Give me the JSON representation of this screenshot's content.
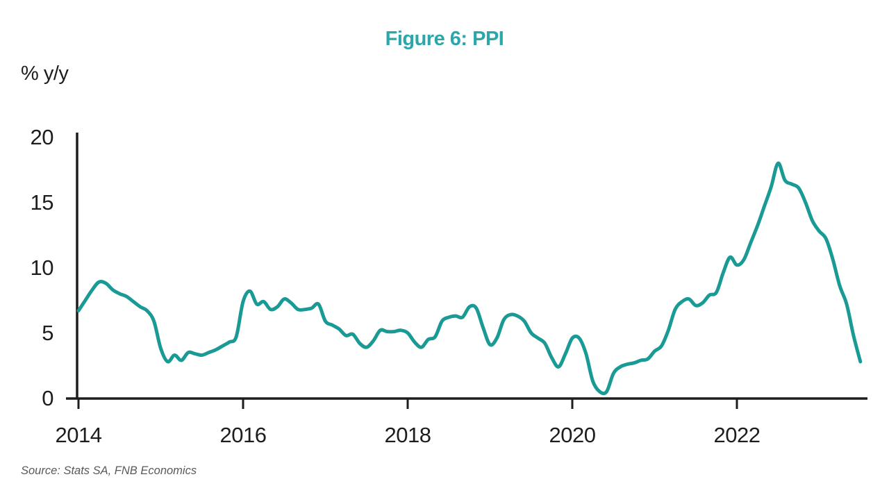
{
  "figure": {
    "title": "Figure 6: PPI",
    "y_axis_unit": "% y/y",
    "source_note": "Source: Stats SA, FNB Economics"
  },
  "colors": {
    "title": "#2BA7AA",
    "line": "#1A9A94",
    "axis": "#1D1D1B",
    "tick_label": "#1D1D1B",
    "source_text": "#595959",
    "background": "#FFFFFF"
  },
  "chart_data": {
    "type": "line",
    "title": "Figure 6: PPI",
    "ylabel": "% y/y",
    "xlabel": "",
    "grid": false,
    "legend_position": "none",
    "x_ticks": [
      2014,
      2016,
      2018,
      2020,
      2022
    ],
    "y_ticks": [
      0,
      5,
      10,
      15,
      20
    ],
    "ylim": [
      0,
      20
    ],
    "xlim": [
      2014.0,
      2023.75
    ],
    "source": "Source: Stats SA, FNB Economics",
    "series": [
      {
        "name": "PPI",
        "unit": "% y/y",
        "frequency": "monthly",
        "start": "2014-01",
        "end": "2023-07",
        "values": [
          6.7,
          7.5,
          8.3,
          8.9,
          8.8,
          8.3,
          8.0,
          7.8,
          7.4,
          7.0,
          6.7,
          5.9,
          3.8,
          2.8,
          3.3,
          2.9,
          3.5,
          3.4,
          3.3,
          3.5,
          3.7,
          4.0,
          4.3,
          4.7,
          7.4,
          8.2,
          7.2,
          7.4,
          6.8,
          7.0,
          7.6,
          7.3,
          6.8,
          6.8,
          6.9,
          7.2,
          5.9,
          5.6,
          5.3,
          4.8,
          4.9,
          4.2,
          3.9,
          4.4,
          5.2,
          5.1,
          5.1,
          5.2,
          5.0,
          4.3,
          3.9,
          4.5,
          4.7,
          5.9,
          6.2,
          6.3,
          6.2,
          7.0,
          6.9,
          5.4,
          4.1,
          4.6,
          6.0,
          6.4,
          6.3,
          5.9,
          5.0,
          4.6,
          4.2,
          3.1,
          2.4,
          3.4,
          4.6,
          4.6,
          3.4,
          1.3,
          0.5,
          0.5,
          1.9,
          2.4,
          2.6,
          2.7,
          2.9,
          3.0,
          3.6,
          4.0,
          5.2,
          6.8,
          7.4,
          7.6,
          7.1,
          7.3,
          7.9,
          8.1,
          9.6,
          10.8,
          10.2,
          10.6,
          11.9,
          13.2,
          14.7,
          16.2,
          18.0,
          16.7,
          16.4,
          16.1,
          15.0,
          13.6,
          12.8,
          12.2,
          10.6,
          8.6,
          7.2,
          4.8,
          2.8
        ]
      }
    ]
  }
}
